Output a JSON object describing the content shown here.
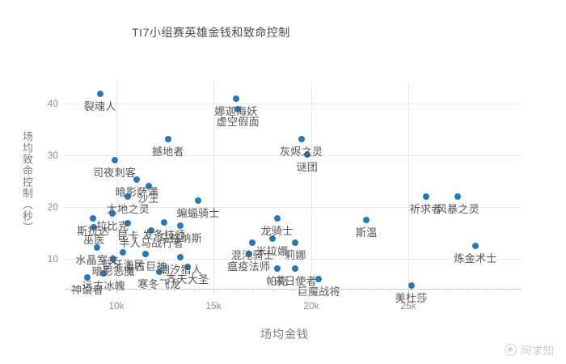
{
  "watermark": {
    "text": "问求知"
  },
  "chart_data": {
    "type": "scatter",
    "title": "TI7小组赛英雄金钱和致命控制",
    "xlabel": "场均金钱",
    "ylabel": "场均致命控制（秒）",
    "xlim": [
      7340,
      30820
    ],
    "ylim": [
      4.2,
      44.4
    ],
    "grid": true,
    "legend": "none",
    "point_color": "#2878b5",
    "x_ticks": [
      {
        "value": 10000,
        "label": "10k"
      },
      {
        "value": 15000,
        "label": "15k"
      },
      {
        "value": 20000,
        "label": "20k"
      },
      {
        "value": 25000,
        "label": "25k"
      }
    ],
    "y_ticks": [
      {
        "value": 10,
        "label": "10"
      },
      {
        "value": 20,
        "label": "20"
      },
      {
        "value": 30,
        "label": "30"
      },
      {
        "value": 40,
        "label": "40"
      }
    ],
    "points": [
      {
        "name": "裂魂人",
        "gold": 9150,
        "seconds": 41.9
      },
      {
        "name": "娜迦海妖",
        "gold": 16150,
        "seconds": 40.9
      },
      {
        "name": "虚空假面",
        "gold": 16250,
        "seconds": 38.9
      },
      {
        "name": "撼地者",
        "gold": 12650,
        "seconds": 33.1
      },
      {
        "name": "灰烬之灵",
        "gold": 19500,
        "seconds": 33.1
      },
      {
        "name": "谜团",
        "gold": 19800,
        "seconds": 30.2
      },
      {
        "name": "司夜刺客",
        "gold": 9900,
        "seconds": 29.1
      },
      {
        "name": "暗影萨满",
        "gold": 11050,
        "seconds": 25.3
      },
      {
        "name": "沙王",
        "gold": 11650,
        "seconds": 24.1
      },
      {
        "name": "大地之灵",
        "gold": 10600,
        "seconds": 22.0
      },
      {
        "name": "蝙蝠骑士",
        "gold": 14200,
        "seconds": 21.3
      },
      {
        "name": "拉比克",
        "gold": 9800,
        "seconds": 18.8
      },
      {
        "name": "斯拉达",
        "gold": 8800,
        "seconds": 17.8
      },
      {
        "name": "巫医",
        "gold": 8850,
        "seconds": 16.1
      },
      {
        "name": "昆卡",
        "gold": 10600,
        "seconds": 16.9
      },
      {
        "name": "发条技师",
        "gold": 12450,
        "seconds": 17.0
      },
      {
        "name": "半人马战行者",
        "gold": 11800,
        "seconds": 15.5
      },
      {
        "name": "马格纳斯",
        "gold": 13300,
        "seconds": 16.4
      },
      {
        "name": "水晶室女",
        "gold": 9000,
        "seconds": 12.2
      },
      {
        "name": "巨牙海民",
        "gold": 10350,
        "seconds": 11.3
      },
      {
        "name": "上古巨神",
        "gold": 11500,
        "seconds": 10.9
      },
      {
        "name": "暗影恶魔",
        "gold": 9850,
        "seconds": 10.0
      },
      {
        "name": "潮汐猎人",
        "gold": 13300,
        "seconds": 10.3
      },
      {
        "name": "齐天大圣",
        "gold": 13650,
        "seconds": 8.4
      },
      {
        "name": "远古冰魄",
        "gold": 9350,
        "seconds": 7.2
      },
      {
        "name": "神谕者",
        "gold": 8500,
        "seconds": 6.4
      },
      {
        "name": "寒冬飞龙",
        "gold": 12200,
        "seconds": 7.5
      },
      {
        "name": "龙骑士",
        "gold": 18250,
        "seconds": 17.8
      },
      {
        "name": "混沌骑士",
        "gold": 17000,
        "seconds": 13.1
      },
      {
        "name": "米拉娜",
        "gold": 18000,
        "seconds": 13.9
      },
      {
        "name": "莉娜",
        "gold": 19200,
        "seconds": 13.1
      },
      {
        "name": "瘟疫法师",
        "gold": 16800,
        "seconds": 10.9
      },
      {
        "name": "帕克",
        "gold": 18250,
        "seconds": 8.1
      },
      {
        "name": "末日使者",
        "gold": 19200,
        "seconds": 8.1
      },
      {
        "name": "巨魔战将",
        "gold": 20400,
        "seconds": 6.1
      },
      {
        "name": "斯温",
        "gold": 22850,
        "seconds": 17.5
      },
      {
        "name": "祈求者",
        "gold": 25900,
        "seconds": 22.0
      },
      {
        "name": "风暴之灵",
        "gold": 27550,
        "seconds": 22.0
      },
      {
        "name": "炼金术士",
        "gold": 28450,
        "seconds": 12.5
      },
      {
        "name": "美杜莎",
        "gold": 25150,
        "seconds": 4.8
      }
    ]
  }
}
